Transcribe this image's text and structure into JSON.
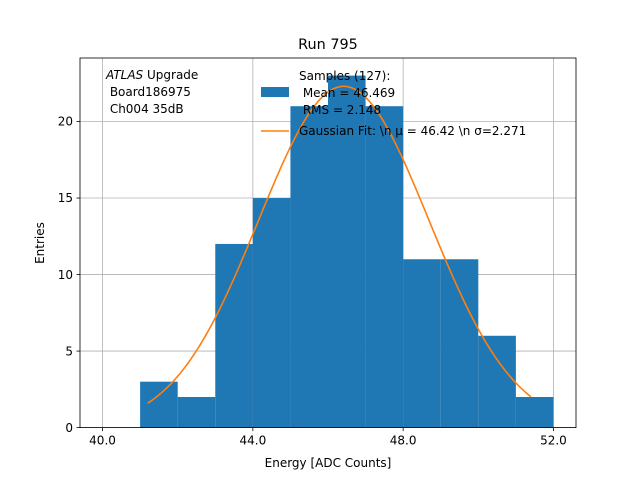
{
  "chart_data": {
    "type": "bar",
    "title": "Run 795",
    "xlabel": "Energy [ADC Counts]",
    "ylabel": "Entries",
    "xlim": [
      39.4,
      52.6
    ],
    "ylim": [
      0,
      24.15
    ],
    "grid": true,
    "xticks": [
      40,
      44,
      48,
      52
    ],
    "xtick_labels": [
      "40.0",
      "44.0",
      "48.0",
      "52.0"
    ],
    "yticks": [
      0,
      5,
      10,
      15,
      20
    ],
    "yticks_labels": [
      "0",
      "5",
      "10",
      "15",
      "20"
    ],
    "annotation": {
      "italic": "ATLAS",
      "line1_rest": " Upgrade",
      "line2": " Board186975",
      "line3": " Ch004 35dB"
    },
    "legend_placement": "top-center",
    "histogram": {
      "name_lines": [
        "Samples (127):",
        " Mean = 46.469",
        " RMS = 2.148"
      ],
      "color": "#1f77b4",
      "edges": [
        41,
        42,
        43,
        44,
        45,
        46,
        47,
        48,
        49,
        50,
        51,
        52
      ],
      "counts": [
        3,
        2,
        12,
        15,
        21,
        23,
        21,
        11,
        11,
        6,
        2
      ]
    },
    "fit": {
      "name": "Gaussian Fit: \\n μ = 46.42 \\n σ=2.271",
      "color": "#ff7f0e",
      "amplitude": 22.3,
      "mu": 46.42,
      "sigma": 2.271,
      "x_range": [
        41.2,
        51.4
      ]
    }
  }
}
